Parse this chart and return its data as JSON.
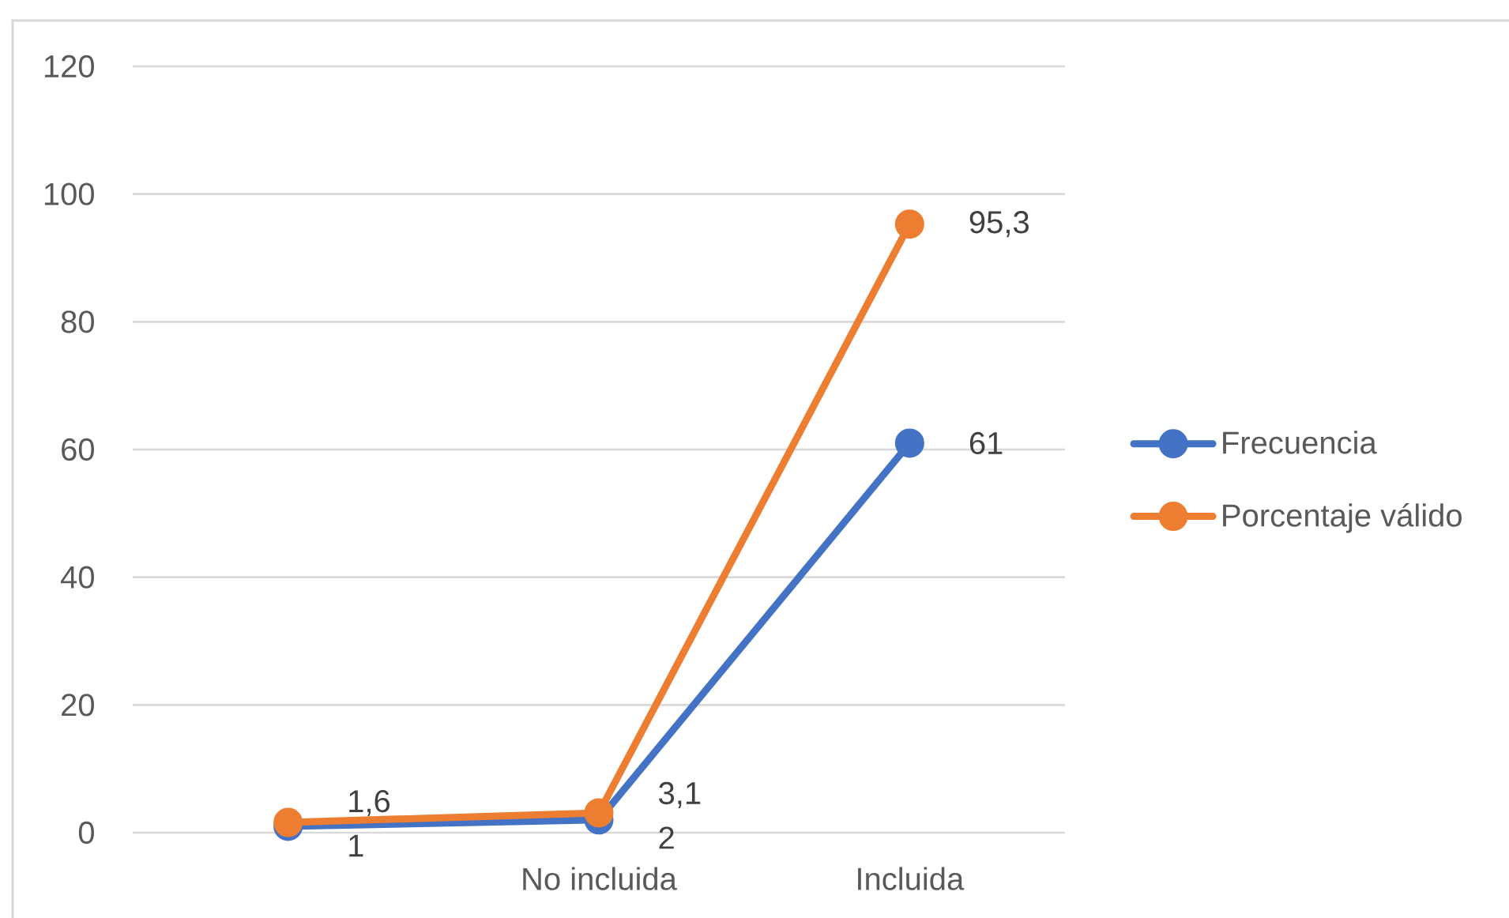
{
  "chart_data": {
    "type": "line",
    "categories": [
      null,
      "No incluida",
      "Incluida"
    ],
    "series": [
      {
        "name": "Frecuencia",
        "color": "#4472c4",
        "values": [
          1,
          2,
          61
        ],
        "value_labels": [
          "1",
          "2",
          "61"
        ]
      },
      {
        "name": "Porcentaje válido",
        "color": "#ed7d31",
        "values": [
          1.6,
          3.1,
          95.3
        ],
        "value_labels": [
          "1,6",
          "3,1",
          "95,3"
        ]
      }
    ],
    "ylim": [
      0,
      120
    ],
    "yticks": [
      0,
      20,
      40,
      60,
      80,
      100,
      120
    ],
    "grid": "y",
    "legend": "right",
    "marker": "circle",
    "line_style": "solid"
  }
}
